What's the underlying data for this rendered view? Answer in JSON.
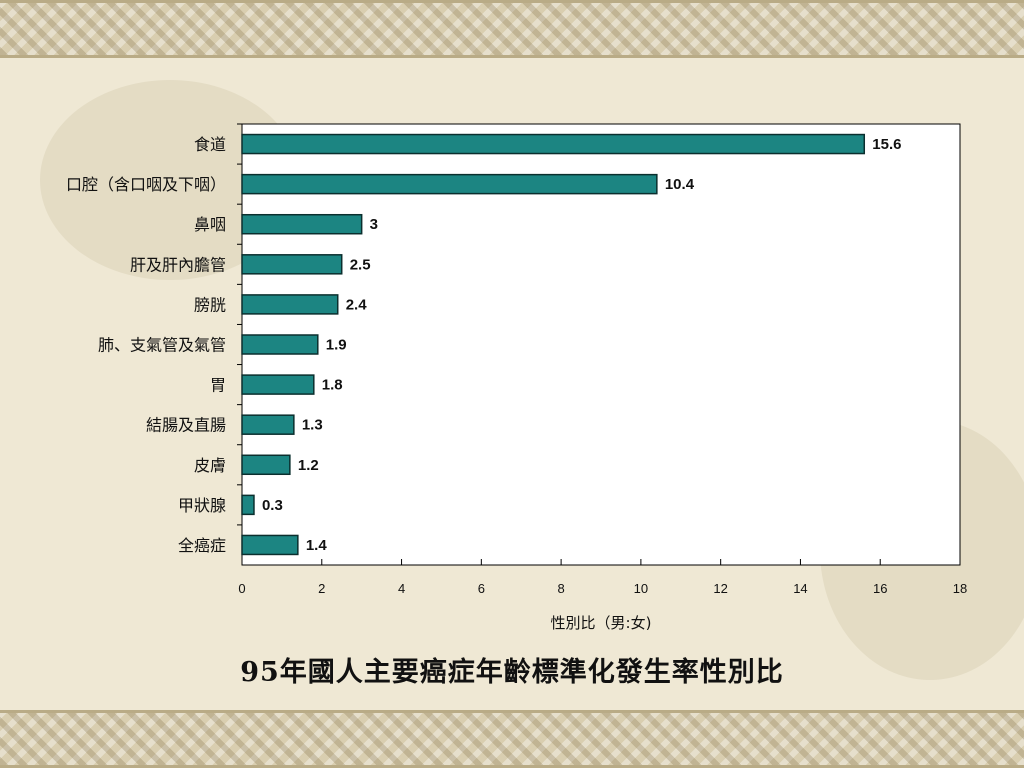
{
  "caption": "95年國人主要癌症年齡標準化發生率性別比",
  "colors": {
    "bar": "#1c8582",
    "bar_edge": "#0b2f2e"
  },
  "chart_data": {
    "type": "bar",
    "orientation": "horizontal",
    "title": "",
    "xlabel": "性別比（男:女)",
    "ylabel": "",
    "xlim": [
      0,
      18
    ],
    "xticks": [
      0,
      2,
      4,
      6,
      8,
      10,
      12,
      14,
      16,
      18
    ],
    "categories": [
      "食道",
      "口腔（含口咽及下咽）",
      "鼻咽",
      "肝及肝內膽管",
      "膀胱",
      "肺、支氣管及氣管",
      "胃",
      "結腸及直腸",
      "皮膚",
      "甲狀腺",
      "全癌症"
    ],
    "values": [
      15.6,
      10.4,
      3,
      2.5,
      2.4,
      1.9,
      1.8,
      1.3,
      1.2,
      0.3,
      1.4
    ],
    "value_labels": [
      "15.6",
      "10.4",
      "3",
      "2.5",
      "2.4",
      "1.9",
      "1.8",
      "1.3",
      "1.2",
      "0.3",
      "1.4"
    ],
    "grid": false,
    "legend": "none"
  }
}
